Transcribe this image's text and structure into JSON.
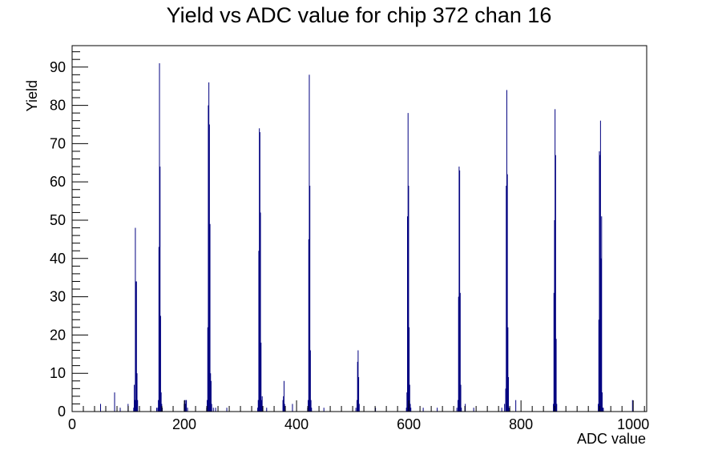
{
  "chart_data": {
    "type": "bar",
    "title": "Yield vs ADC value for chip 372 chan 16",
    "xlabel": "ADC value",
    "ylabel": "Yield",
    "xlim": [
      0,
      1024
    ],
    "ylim": [
      0,
      95.6
    ],
    "x_ticks": [
      0,
      200,
      400,
      600,
      800,
      1000
    ],
    "y_ticks": [
      0,
      10,
      20,
      30,
      40,
      50,
      60,
      70,
      80,
      90
    ],
    "grid": false,
    "line_color": "#000080",
    "bin_width": 1,
    "points": [
      [
        50,
        2
      ],
      [
        75,
        5
      ],
      [
        85,
        1
      ],
      [
        99,
        2
      ],
      [
        109,
        1
      ],
      [
        110,
        7
      ],
      [
        111,
        3
      ],
      [
        112,
        48
      ],
      [
        113,
        34
      ],
      [
        114,
        34
      ],
      [
        115,
        10
      ],
      [
        116,
        3
      ],
      [
        150,
        1
      ],
      [
        152,
        1
      ],
      [
        153,
        3
      ],
      [
        154,
        43
      ],
      [
        155,
        91
      ],
      [
        156,
        64
      ],
      [
        157,
        25
      ],
      [
        158,
        5
      ],
      [
        159,
        2
      ],
      [
        160,
        1
      ],
      [
        199,
        2
      ],
      [
        200,
        3
      ],
      [
        201,
        2
      ],
      [
        202,
        3
      ],
      [
        203,
        3
      ],
      [
        205,
        1
      ],
      [
        239,
        1
      ],
      [
        240,
        3
      ],
      [
        241,
        22
      ],
      [
        242,
        80
      ],
      [
        243,
        86
      ],
      [
        244,
        75
      ],
      [
        245,
        49
      ],
      [
        246,
        10
      ],
      [
        247,
        8
      ],
      [
        248,
        2
      ],
      [
        251,
        1
      ],
      [
        255,
        1
      ],
      [
        275,
        1
      ],
      [
        330,
        1
      ],
      [
        331,
        3
      ],
      [
        332,
        42
      ],
      [
        333,
        74
      ],
      [
        334,
        73
      ],
      [
        335,
        52
      ],
      [
        336,
        18
      ],
      [
        337,
        3
      ],
      [
        338,
        4
      ],
      [
        339,
        1
      ],
      [
        346,
        1
      ],
      [
        375,
        3
      ],
      [
        376,
        4
      ],
      [
        377,
        8
      ],
      [
        378,
        2
      ],
      [
        392,
        2
      ],
      [
        419,
        1
      ],
      [
        420,
        3
      ],
      [
        421,
        45
      ],
      [
        422,
        88
      ],
      [
        423,
        59
      ],
      [
        424,
        16
      ],
      [
        425,
        3
      ],
      [
        426,
        1
      ],
      [
        448,
        1
      ],
      [
        505,
        1
      ],
      [
        507,
        3
      ],
      [
        508,
        13
      ],
      [
        509,
        16
      ],
      [
        510,
        9
      ],
      [
        511,
        2
      ],
      [
        540,
        1
      ],
      [
        595,
        1
      ],
      [
        596,
        5
      ],
      [
        597,
        51
      ],
      [
        598,
        78
      ],
      [
        599,
        59
      ],
      [
        600,
        22
      ],
      [
        601,
        7
      ],
      [
        602,
        2
      ],
      [
        603,
        1
      ],
      [
        625,
        1
      ],
      [
        650,
        1
      ],
      [
        685,
        1
      ],
      [
        687,
        3
      ],
      [
        688,
        30
      ],
      [
        689,
        64
      ],
      [
        690,
        63
      ],
      [
        691,
        31
      ],
      [
        692,
        7
      ],
      [
        693,
        1
      ],
      [
        700,
        2
      ],
      [
        715,
        1
      ],
      [
        765,
        1
      ],
      [
        770,
        2
      ],
      [
        772,
        6
      ],
      [
        773,
        59
      ],
      [
        774,
        84
      ],
      [
        775,
        62
      ],
      [
        776,
        22
      ],
      [
        777,
        9
      ],
      [
        778,
        1
      ],
      [
        790,
        3
      ],
      [
        857,
        2
      ],
      [
        858,
        31
      ],
      [
        859,
        50
      ],
      [
        860,
        79
      ],
      [
        861,
        67
      ],
      [
        862,
        19
      ],
      [
        863,
        2
      ],
      [
        937,
        2
      ],
      [
        938,
        24
      ],
      [
        939,
        68
      ],
      [
        940,
        67
      ],
      [
        941,
        76
      ],
      [
        942,
        40
      ],
      [
        943,
        51
      ],
      [
        944,
        5
      ],
      [
        945,
        1
      ],
      [
        946,
        1
      ],
      [
        998,
        3
      ]
    ]
  }
}
